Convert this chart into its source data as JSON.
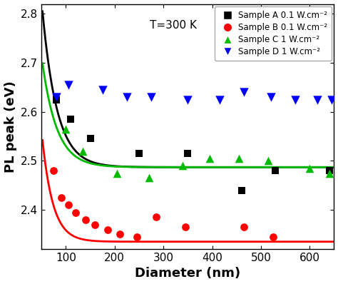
{
  "title": "T=300 K",
  "xlabel": "Diameter (nm)",
  "ylabel": "PL peak (eV)",
  "xlim": [
    50,
    650
  ],
  "ylim": [
    2.32,
    2.82
  ],
  "yticks": [
    2.4,
    2.5,
    2.6,
    2.7,
    2.8
  ],
  "xticks": [
    100,
    200,
    300,
    400,
    500,
    600
  ],
  "sampleA_x": [
    80,
    110,
    150,
    250,
    350,
    460,
    530,
    640
  ],
  "sampleA_y": [
    2.625,
    2.585,
    2.545,
    2.515,
    2.515,
    2.44,
    2.48,
    2.48
  ],
  "sampleB_x": [
    75,
    90,
    105,
    120,
    140,
    160,
    185,
    210,
    245,
    285,
    345,
    465,
    525
  ],
  "sampleB_y": [
    2.48,
    2.425,
    2.41,
    2.395,
    2.38,
    2.37,
    2.36,
    2.35,
    2.345,
    2.385,
    2.365,
    2.365,
    2.345
  ],
  "sampleC_x": [
    100,
    135,
    205,
    270,
    340,
    395,
    455,
    515,
    600,
    640
  ],
  "sampleC_y": [
    2.565,
    2.52,
    2.475,
    2.465,
    2.49,
    2.505,
    2.505,
    2.5,
    2.485,
    2.475
  ],
  "sampleD_x": [
    80,
    105,
    175,
    225,
    275,
    350,
    415,
    465,
    520,
    570,
    615,
    645
  ],
  "sampleD_y": [
    2.63,
    2.655,
    2.645,
    2.63,
    2.63,
    2.625,
    2.625,
    2.64,
    2.63,
    2.625,
    2.625,
    2.625
  ],
  "fitA_asymptote": 2.487,
  "fitA_amplitude": 1.8,
  "fitA_decay": 30,
  "fitB_asymptote": 2.335,
  "fitB_amplitude": 2.2,
  "fitB_decay": 22,
  "fitC_asymptote": 2.487,
  "fitC_amplitude": 1.2,
  "fitC_decay": 30,
  "colorA": "#000000",
  "colorB": "#ff0000",
  "colorC": "#00bb00",
  "colorD": "#0000ff",
  "legend_labels": [
    "Sample A 0.1 W.cm⁻²",
    "Sample B 0.1 W.cm⁻²",
    "Sample C 1 W.cm⁻²",
    "Sample D 1 W.cm⁻²"
  ],
  "background_color": "#ffffff"
}
